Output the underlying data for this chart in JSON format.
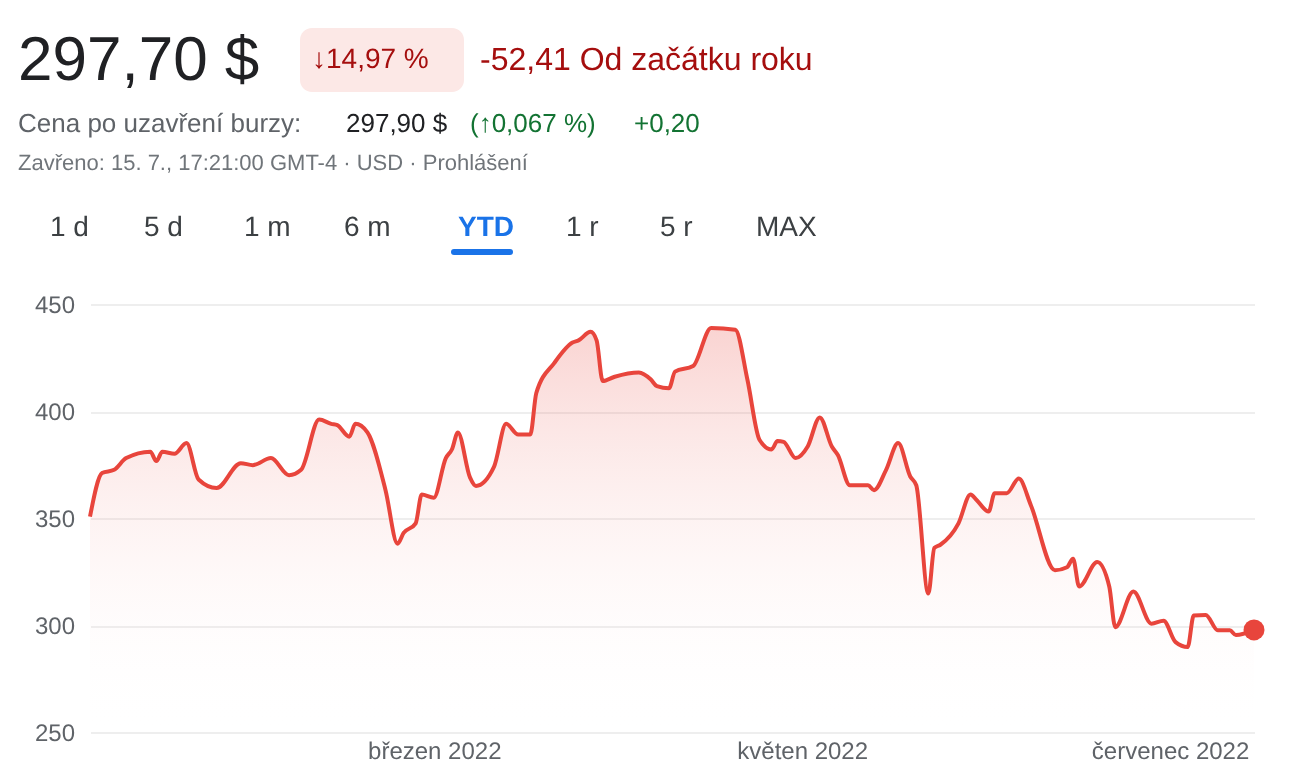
{
  "chart_data": {
    "type": "area",
    "title": "297,70 $",
    "annotations": [
      "↓14,97 %",
      "-52,41 Od začátku roku",
      "Cena po uzavření burzy:",
      "297,90 $",
      "(↑0,067 %)",
      "+0,20",
      "Zavřeno: 15. 7., 17:21:00 GMT-4 · USD · Prohlášení",
      "1 d",
      "5 d",
      "1 m",
      "6 m",
      "YTD",
      "1 r",
      "5 r",
      "MAX"
    ],
    "xlim": [
      "2022-01-03",
      "2022-07-15"
    ],
    "xticks": [
      {
        "value": "2022-03-01",
        "label": "březen 2022"
      },
      {
        "value": "2022-05-01",
        "label": "květen 2022"
      },
      {
        "value": "2022-07-01",
        "label": "červenec 2022"
      }
    ],
    "ylim": [
      250,
      450
    ],
    "yticks": [
      250,
      300,
      350,
      400,
      450
    ],
    "grid": "y",
    "series": [
      {
        "color": "#e8453c",
        "x": [
          "2022-01-03",
          "2022-01-05",
          "2022-01-07",
          "2022-01-09",
          "2022-01-13",
          "2022-01-14",
          "2022-01-15",
          "2022-01-17",
          "2022-01-19",
          "2022-01-21",
          "2022-01-24",
          "2022-01-28",
          "2022-01-30",
          "2022-02-02",
          "2022-02-05",
          "2022-02-07",
          "2022-02-10",
          "2022-02-12",
          "2022-02-13",
          "2022-02-15",
          "2022-02-16",
          "2022-02-18",
          "2022-02-21",
          "2022-02-23",
          "2022-02-24",
          "2022-02-26",
          "2022-02-27",
          "2022-03-01",
          "2022-03-03",
          "2022-03-04",
          "2022-03-05",
          "2022-03-07",
          "2022-03-08",
          "2022-03-11",
          "2022-03-13",
          "2022-03-15",
          "2022-03-17",
          "2022-03-18",
          "2022-03-21",
          "2022-03-24",
          "2022-03-25",
          "2022-03-27",
          "2022-03-28",
          "2022-03-29",
          "2022-03-31",
          "2022-04-04",
          "2022-04-06",
          "2022-04-07",
          "2022-04-09",
          "2022-04-10",
          "2022-04-13",
          "2022-04-16",
          "2022-04-20",
          "2022-04-22",
          "2022-04-24",
          "2022-04-26",
          "2022-04-27",
          "2022-04-28",
          "2022-04-30",
          "2022-05-02",
          "2022-05-04",
          "2022-05-06",
          "2022-05-07",
          "2022-05-09",
          "2022-05-12",
          "2022-05-13",
          "2022-05-15",
          "2022-05-17",
          "2022-05-19",
          "2022-05-20",
          "2022-05-22",
          "2022-05-23",
          "2022-05-24",
          "2022-05-27",
          "2022-05-29",
          "2022-05-30",
          "2022-06-01",
          "2022-06-02",
          "2022-06-04",
          "2022-06-06",
          "2022-06-08",
          "2022-06-12",
          "2022-06-14",
          "2022-06-15",
          "2022-06-16",
          "2022-06-19",
          "2022-06-21",
          "2022-06-22",
          "2022-06-25",
          "2022-06-28",
          "2022-06-30",
          "2022-07-02",
          "2022-07-04",
          "2022-07-05",
          "2022-07-07",
          "2022-07-09",
          "2022-07-11",
          "2022-07-12",
          "2022-07-15"
        ],
        "values": [
          350.6,
          371,
          372.5,
          378,
          381,
          376.6,
          381,
          380,
          385,
          368,
          364,
          375.6,
          374.7,
          378,
          370,
          372.5,
          396,
          394,
          393.4,
          388,
          394,
          390,
          363,
          338,
          343,
          347.5,
          361,
          359.5,
          378,
          382,
          390,
          369,
          365,
          374,
          394,
          389,
          389,
          408.4,
          422.5,
          432,
          433,
          437,
          433,
          414,
          416,
          418,
          414.7,
          411.6,
          410.6,
          418.4,
          421,
          438.8,
          438,
          414.7,
          386.6,
          382,
          386,
          385.6,
          378,
          383.4,
          397,
          383.4,
          379.4,
          365.3,
          365.3,
          363,
          372.5,
          385,
          369.4,
          365.3,
          314.7,
          336,
          337.5,
          347.5,
          361,
          358.4,
          353,
          361.6,
          361.6,
          368.4,
          356,
          325.6,
          327,
          331,
          318,
          329.4,
          318,
          299,
          315.6,
          300.6,
          302,
          292,
          289.7,
          304.4,
          304.7,
          297.5,
          297.5,
          295.3,
          297.7
        ]
      },
      {
        "type": "scatter",
        "marker": "circle",
        "color": "#e8453c",
        "x": [
          "2022-07-15"
        ],
        "values": [
          297.7
        ]
      }
    ]
  }
}
